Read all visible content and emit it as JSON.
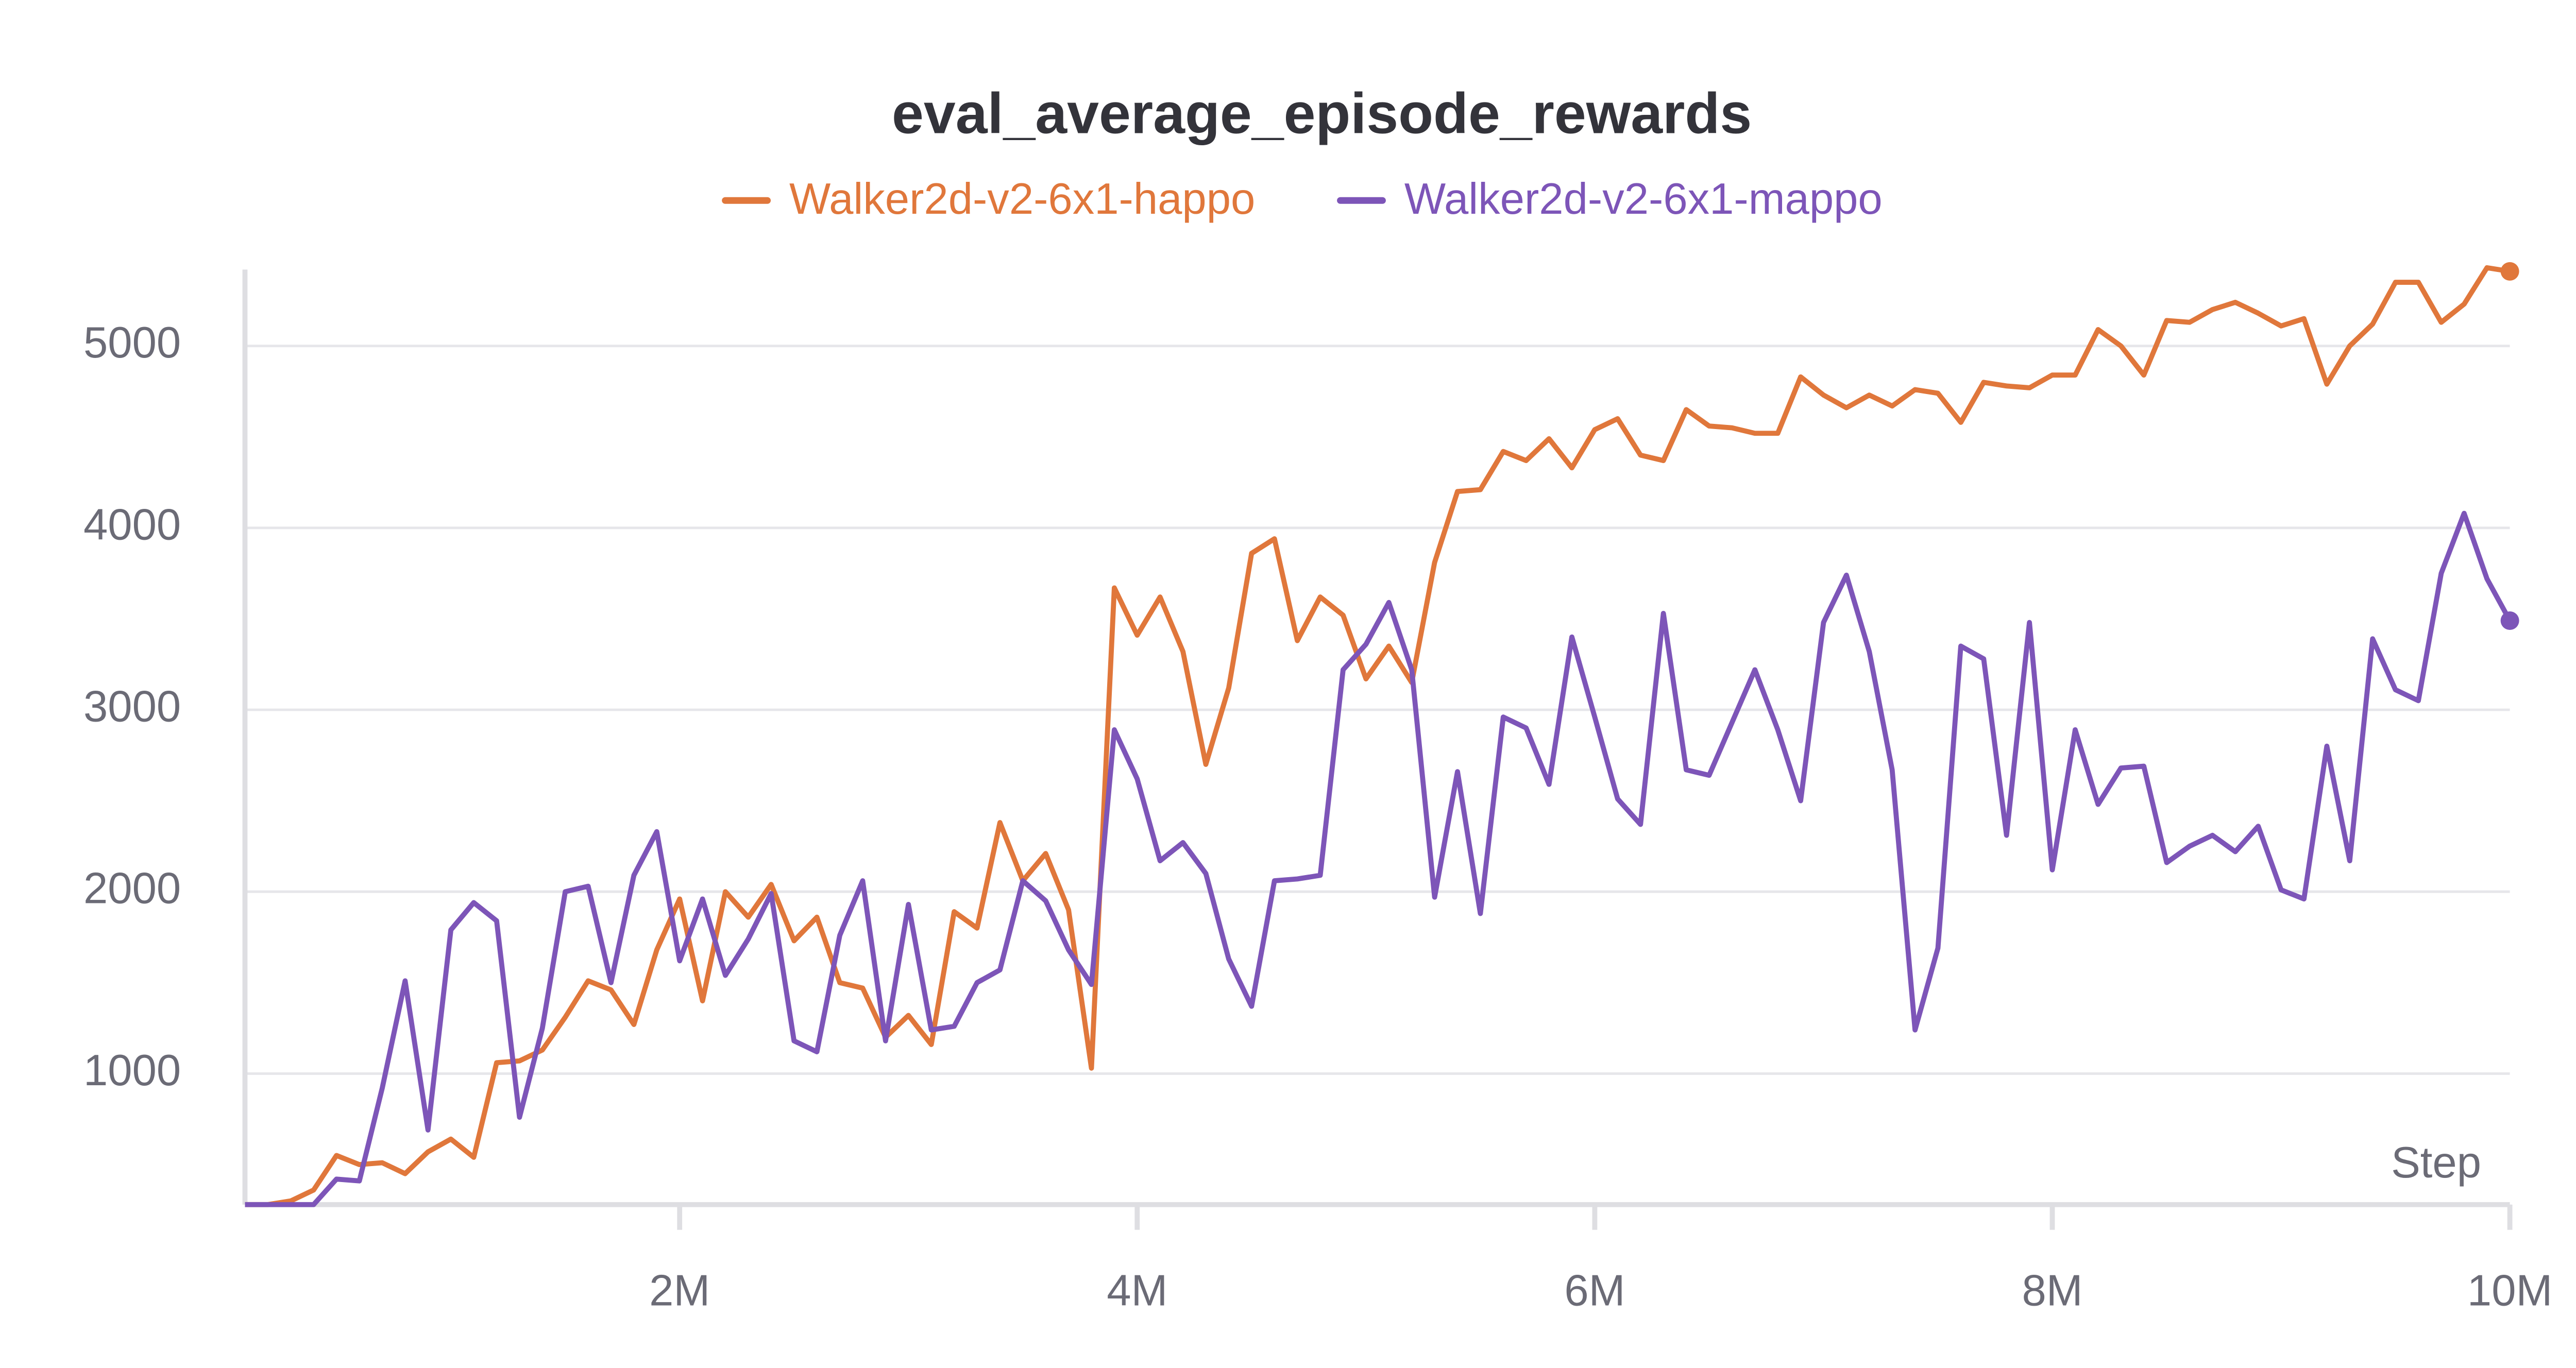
{
  "chart_data": {
    "type": "line",
    "title": "eval_average_episode_rewards",
    "x_label": "Step",
    "x": [
      100000,
      200000,
      300000,
      400000,
      500000,
      600000,
      700000,
      800000,
      900000,
      1000000,
      1100000,
      1200000,
      1300000,
      1400000,
      1500000,
      1600000,
      1700000,
      1800000,
      1900000,
      2000000,
      2100000,
      2200000,
      2300000,
      2400000,
      2500000,
      2600000,
      2700000,
      2800000,
      2900000,
      3000000,
      3100000,
      3200000,
      3300000,
      3400000,
      3500000,
      3600000,
      3700000,
      3800000,
      3900000,
      4000000,
      4100000,
      4200000,
      4300000,
      4400000,
      4500000,
      4600000,
      4700000,
      4800000,
      4900000,
      5000000,
      5100000,
      5200000,
      5300000,
      5400000,
      5500000,
      5600000,
      5700000,
      5800000,
      5900000,
      6000000,
      6100000,
      6200000,
      6300000,
      6400000,
      6500000,
      6600000,
      6700000,
      6800000,
      6900000,
      7000000,
      7100000,
      7200000,
      7300000,
      7400000,
      7500000,
      7600000,
      7700000,
      7800000,
      7900000,
      8000000,
      8100000,
      8200000,
      8300000,
      8400000,
      8500000,
      8600000,
      8700000,
      8800000,
      8900000,
      9000000,
      9100000,
      9200000,
      9300000,
      9400000,
      9500000,
      9600000,
      9700000,
      9800000,
      9900000,
      10000000
    ],
    "series": [
      {
        "name": "Walker2d-v2-6x1-happo",
        "color": "#e0773b",
        "values": [
          280,
          280,
          300,
          360,
          550,
          500,
          510,
          450,
          570,
          640,
          540,
          1060,
          1070,
          1130,
          1310,
          1510,
          1460,
          1270,
          1680,
          1960,
          1400,
          2000,
          1860,
          2040,
          1730,
          1860,
          1500,
          1470,
          1200,
          1320,
          1160,
          1890,
          1800,
          2380,
          2060,
          2210,
          1900,
          1030,
          3670,
          3410,
          3620,
          3320,
          2700,
          3120,
          3860,
          3940,
          3380,
          3620,
          3520,
          3170,
          3350,
          3150,
          3810,
          4200,
          4210,
          4420,
          4370,
          4490,
          4330,
          4540,
          4600,
          4400,
          4370,
          4650,
          4560,
          4550,
          4520,
          4520,
          4830,
          4730,
          4660,
          4730,
          4670,
          4760,
          4740,
          4580,
          4800,
          4780,
          4770,
          4840,
          4840,
          5090,
          5000,
          4840,
          5140,
          5130,
          5200,
          5240,
          5180,
          5110,
          5150,
          4790,
          5000,
          5120,
          5350,
          5350,
          5130,
          5230,
          5430,
          5410
        ]
      },
      {
        "name": "Walker2d-v2-6x1-mappo",
        "color": "#7d55b8",
        "values": [
          280,
          280,
          280,
          280,
          420,
          410,
          920,
          1510,
          690,
          1790,
          1940,
          1840,
          760,
          1250,
          2000,
          2030,
          1500,
          2090,
          2330,
          1620,
          1960,
          1540,
          1740,
          1990,
          1180,
          1120,
          1760,
          2060,
          1180,
          1930,
          1240,
          1260,
          1500,
          1570,
          2060,
          1950,
          1680,
          1490,
          2890,
          2620,
          2170,
          2270,
          2100,
          1630,
          1370,
          2060,
          2070,
          2090,
          3220,
          3360,
          3590,
          3220,
          1970,
          2660,
          1880,
          2960,
          2900,
          2590,
          3400,
          2960,
          2510,
          2370,
          3530,
          2670,
          2640,
          2930,
          3220,
          2890,
          2500,
          3480,
          3740,
          3320,
          2670,
          1240,
          1690,
          3350,
          3280,
          2310,
          3480,
          2120,
          2890,
          2480,
          2680,
          2690,
          2160,
          2250,
          2310,
          2220,
          2360,
          2010,
          1960,
          2800,
          2170,
          3390,
          3110,
          3050,
          3750,
          4080,
          3720,
          3490
        ]
      }
    ],
    "xlim": [
      100000,
      10000000
    ],
    "ylim": [
      280,
      5420
    ],
    "xticks": [
      {
        "value": 2000000,
        "label": "2M"
      },
      {
        "value": 4000000,
        "label": "4M"
      },
      {
        "value": 6000000,
        "label": "6M"
      },
      {
        "value": 8000000,
        "label": "8M"
      },
      {
        "value": 10000000,
        "label": "10M"
      }
    ],
    "yticks": [
      1000,
      2000,
      3000,
      4000,
      5000
    ],
    "grid": true
  }
}
